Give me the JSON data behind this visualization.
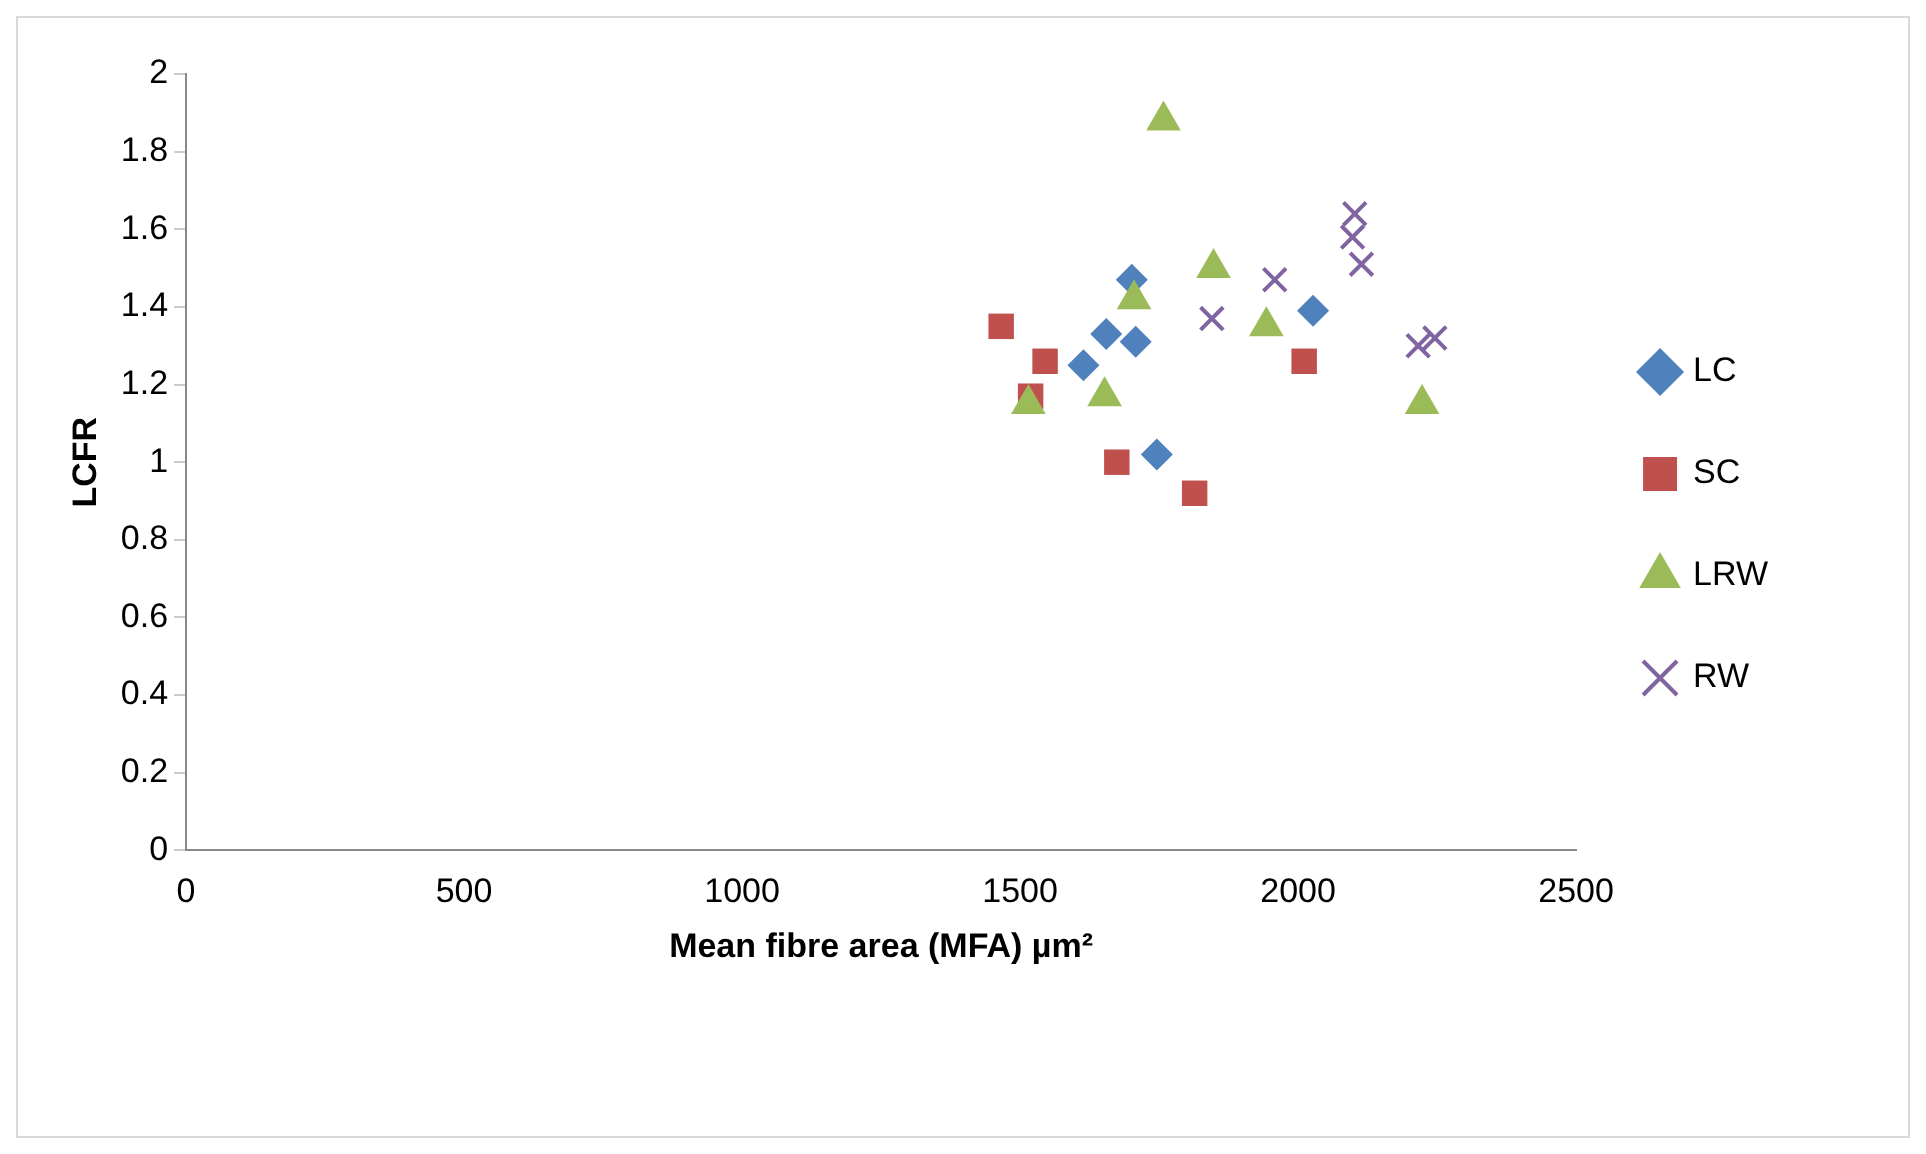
{
  "chart_data": {
    "type": "scatter",
    "xlabel": "Mean fibre area (MFA) µm²",
    "ylabel": "LCFR",
    "xlim": [
      0,
      2500
    ],
    "xticks": [
      0,
      500,
      1000,
      1500,
      2000,
      2500
    ],
    "ylim": [
      0,
      2
    ],
    "yticks": [
      0,
      0.2,
      0.4,
      0.6,
      0.8,
      1,
      1.2,
      1.4,
      1.6,
      1.8,
      2
    ],
    "grid": false,
    "legend": "right",
    "series": [
      {
        "name": "LC",
        "color": "#4f81bd",
        "marker": "diamond",
        "x": [
          1701,
          1655,
          1708,
          1614,
          2027,
          1746
        ],
        "values": [
          1.47,
          1.33,
          1.31,
          1.25,
          1.39,
          1.02
        ]
      },
      {
        "name": "SC",
        "color": "#c0504d",
        "marker": "square",
        "x": [
          1466,
          1545,
          1519,
          1674,
          1814,
          2011
        ],
        "values": [
          1.35,
          1.26,
          1.17,
          1.0,
          0.92,
          1.26
        ]
      },
      {
        "name": "LRW",
        "color": "#9bbb59",
        "marker": "triangle",
        "x": [
          1758,
          1848,
          1705,
          1943,
          1652,
          1515,
          2223
        ],
        "values": [
          1.88,
          1.5,
          1.42,
          1.35,
          1.17,
          1.15,
          1.15
        ]
      },
      {
        "name": "RW",
        "color": "#8064a2",
        "marker": "cross",
        "x": [
          2102,
          2098,
          2114,
          1958,
          1845,
          2216,
          2246
        ],
        "values": [
          1.64,
          1.58,
          1.51,
          1.47,
          1.37,
          1.3,
          1.32
        ]
      }
    ]
  }
}
